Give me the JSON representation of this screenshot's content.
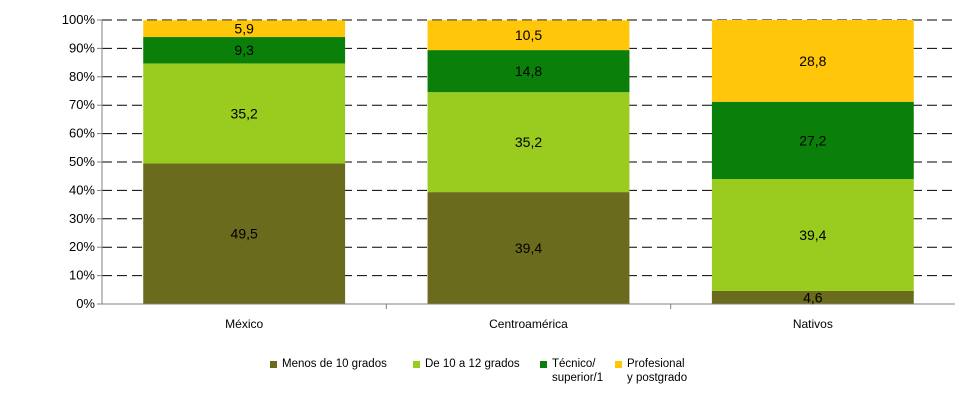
{
  "colors": {
    "menos10": "#6b6b1d",
    "de10a12": "#99cc1f",
    "tecnico": "#0a7f0a",
    "profesional": "#ffc60a"
  },
  "chart_data": {
    "type": "bar",
    "stacked": true,
    "categories": [
      "México",
      "Centroamérica",
      "Nativos"
    ],
    "series": [
      {
        "name": "Menos de 10 grados",
        "color_key": "menos10",
        "values": [
          49.5,
          39.4,
          4.6
        ]
      },
      {
        "name": "De 10 a 12 grados",
        "color_key": "de10a12",
        "values": [
          35.2,
          35.2,
          39.4
        ]
      },
      {
        "name": "Técnico/\nsuperior/1",
        "color_key": "tecnico",
        "values": [
          9.3,
          14.8,
          27.2
        ]
      },
      {
        "name": "Profesional\ny postgrado",
        "color_key": "profesional",
        "values": [
          5.9,
          10.5,
          28.8
        ]
      }
    ],
    "value_labels": [
      [
        "49,5",
        "35,2",
        "9,3",
        "5,9"
      ],
      [
        "39,4",
        "35,2",
        "14,8",
        "10,5"
      ],
      [
        "4,6",
        "39,4",
        "27,2",
        "28,8"
      ]
    ],
    "y_ticks": [
      "0%",
      "10%",
      "20%",
      "30%",
      "40%",
      "50%",
      "60%",
      "70%",
      "80%",
      "90%",
      "100%"
    ],
    "ylim": [
      0,
      100
    ],
    "grid": true,
    "legend_position": "bottom"
  }
}
